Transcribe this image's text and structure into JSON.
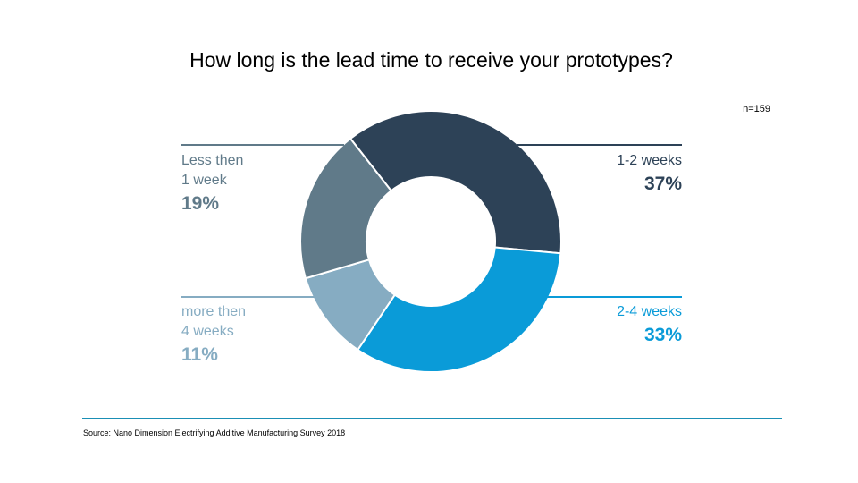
{
  "page": {
    "title": "How long is the lead time to receive your prototypes?",
    "note": "n=159",
    "source": "Source: Nano Dimension Electrifying Additive Manufacturing Survey 2018"
  },
  "colors": {
    "rule": "#1a8fb5",
    "slice_1_2_weeks": "#2d4257",
    "slice_2_4_weeks": "#0a9bd8",
    "slice_more_4_weeks": "#86acc2",
    "slice_less_1_week": "#607a89"
  },
  "chart_data": {
    "type": "pie",
    "donut": true,
    "slices": [
      {
        "name": "1-2 weeks",
        "value": 37,
        "label": "37%",
        "color": "#2d4257"
      },
      {
        "name": "2-4 weeks",
        "value": 33,
        "label": "33%",
        "color": "#0a9bd8"
      },
      {
        "name": "more then\n4 weeks",
        "value": 11,
        "label": "11%",
        "color": "#86acc2"
      },
      {
        "name": "Less then\n1 week",
        "value": 19,
        "label": "19%",
        "color": "#607a89"
      }
    ],
    "title": "How long is the lead time to receive your prototypes?"
  }
}
